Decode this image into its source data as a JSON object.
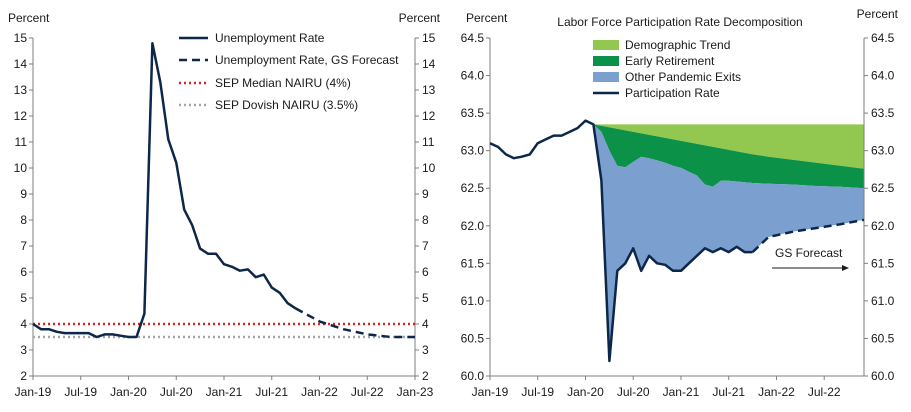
{
  "colors": {
    "navy": "#0c2749",
    "red_dotted": "#d9251d",
    "gray_dotted": "#a6a6a6",
    "demographic": "#92c84f",
    "early_retirement": "#0b9148",
    "other_exits": "#7b9fcf",
    "axis": "#7f7f7f"
  },
  "chart_data": [
    {
      "type": "line",
      "title": "",
      "ylabel_left": "Percent",
      "ylabel_right": "Percent",
      "ylim": [
        2,
        15
      ],
      "yticks": [
        2,
        3,
        4,
        5,
        6,
        7,
        8,
        9,
        10,
        11,
        12,
        13,
        14,
        15
      ],
      "xlim": [
        "2019-01",
        "2023-01"
      ],
      "xtick_labels": [
        "Jan-19",
        "Jul-19",
        "Jan-20",
        "Jul-20",
        "Jan-21",
        "Jul-21",
        "Jan-22",
        "Jul-22",
        "Jan-23"
      ],
      "legend_position": "top-right",
      "series": [
        {
          "name": "Unemployment Rate",
          "style": "solid",
          "x": [
            "2019-01",
            "2019-02",
            "2019-03",
            "2019-04",
            "2019-05",
            "2019-06",
            "2019-07",
            "2019-08",
            "2019-09",
            "2019-10",
            "2019-11",
            "2019-12",
            "2020-01",
            "2020-02",
            "2020-03",
            "2020-04",
            "2020-05",
            "2020-06",
            "2020-07",
            "2020-08",
            "2020-09",
            "2020-10",
            "2020-11",
            "2020-12",
            "2021-01",
            "2021-02",
            "2021-03",
            "2021-04",
            "2021-05",
            "2021-06",
            "2021-07",
            "2021-08",
            "2021-09",
            "2021-10"
          ],
          "y": [
            4.0,
            3.8,
            3.8,
            3.7,
            3.65,
            3.65,
            3.65,
            3.65,
            3.5,
            3.6,
            3.6,
            3.55,
            3.5,
            3.5,
            4.4,
            14.8,
            13.3,
            11.1,
            10.2,
            8.4,
            7.8,
            6.9,
            6.7,
            6.7,
            6.3,
            6.2,
            6.05,
            6.1,
            5.8,
            5.9,
            5.4,
            5.2,
            4.8,
            4.6
          ]
        },
        {
          "name": "Unemployment Rate, GS Forecast",
          "style": "dashed",
          "x": [
            "2021-10",
            "2022-01",
            "2022-04",
            "2022-07",
            "2022-10",
            "2023-01"
          ],
          "y": [
            4.6,
            4.1,
            3.8,
            3.6,
            3.5,
            3.5
          ]
        },
        {
          "name": "SEP Median NAIRU (4%)",
          "style": "dotted",
          "x": [
            "2019-01",
            "2023-01"
          ],
          "y": [
            4.0,
            4.0
          ]
        },
        {
          "name": "SEP Dovish NAIRU (3.5%)",
          "style": "dotted",
          "x": [
            "2019-01",
            "2023-01"
          ],
          "y": [
            3.5,
            3.5
          ]
        }
      ]
    },
    {
      "type": "area",
      "title": "Labor Force Participation Rate Decomposition",
      "ylabel_left": "Percent",
      "ylabel_right": "Percent",
      "ylim": [
        60.0,
        64.5
      ],
      "yticks": [
        60.0,
        60.5,
        61.0,
        61.5,
        62.0,
        62.5,
        63.0,
        63.5,
        64.0,
        64.5
      ],
      "xlim": [
        "2019-01",
        "2022-12"
      ],
      "xtick_labels": [
        "Jan-19",
        "Jul-19",
        "Jan-20",
        "Jul-20",
        "Jan-21",
        "Jul-21",
        "Jan-22",
        "Jul-22"
      ],
      "legend_position": "top-right",
      "annotation": "GS Forecast",
      "area_x": [
        "2020-02",
        "2020-03",
        "2020-04",
        "2020-05",
        "2020-06",
        "2020-07",
        "2020-08",
        "2020-09",
        "2020-10",
        "2020-11",
        "2020-12",
        "2021-01",
        "2021-02",
        "2021-03",
        "2021-04",
        "2021-05",
        "2021-06",
        "2021-07",
        "2021-08",
        "2021-09",
        "2021-10",
        "2021-12",
        "2022-03",
        "2022-06",
        "2022-09",
        "2022-12"
      ],
      "series": [
        {
          "name": "Demographic Trend",
          "upper": [
            63.35,
            63.35,
            63.35,
            63.35,
            63.35,
            63.35,
            63.35,
            63.35,
            63.35,
            63.35,
            63.35,
            63.35,
            63.35,
            63.35,
            63.35,
            63.35,
            63.35,
            63.35,
            63.35,
            63.35,
            63.35,
            63.35,
            63.35,
            63.35,
            63.35,
            63.35
          ],
          "lower": [
            63.35,
            63.33,
            63.31,
            63.29,
            63.27,
            63.25,
            63.23,
            63.21,
            63.19,
            63.17,
            63.15,
            63.13,
            63.11,
            63.09,
            63.07,
            63.05,
            63.03,
            63.01,
            62.99,
            62.97,
            62.95,
            62.92,
            62.88,
            62.84,
            62.8,
            62.76
          ]
        },
        {
          "name": "Early Retirement",
          "upper": [
            63.35,
            63.33,
            63.31,
            63.29,
            63.27,
            63.25,
            63.23,
            63.21,
            63.19,
            63.17,
            63.15,
            63.13,
            63.11,
            63.09,
            63.07,
            63.05,
            63.03,
            63.01,
            62.99,
            62.97,
            62.95,
            62.92,
            62.88,
            62.84,
            62.8,
            62.76
          ],
          "lower": [
            63.35,
            63.25,
            63.0,
            62.8,
            62.78,
            62.85,
            62.92,
            62.9,
            62.87,
            62.84,
            62.8,
            62.77,
            62.72,
            62.67,
            62.55,
            62.52,
            62.6,
            62.6,
            62.59,
            62.58,
            62.57,
            62.56,
            62.55,
            62.53,
            62.52,
            62.5
          ]
        },
        {
          "name": "Other Pandemic Exits",
          "upper": [
            63.35,
            63.25,
            63.0,
            62.8,
            62.78,
            62.85,
            62.92,
            62.9,
            62.87,
            62.84,
            62.8,
            62.77,
            62.72,
            62.67,
            62.55,
            62.52,
            62.6,
            62.6,
            62.59,
            62.58,
            62.57,
            62.56,
            62.55,
            62.53,
            62.52,
            62.5
          ],
          "lower": [
            63.35,
            62.6,
            60.2,
            61.4,
            61.5,
            61.7,
            61.4,
            61.6,
            61.5,
            61.48,
            61.4,
            61.4,
            61.5,
            61.6,
            61.7,
            61.65,
            61.7,
            61.65,
            61.72,
            61.65,
            61.65,
            61.85,
            61.92,
            61.97,
            62.02,
            62.08
          ]
        },
        {
          "name": "Participation Rate",
          "style": "solid",
          "x": [
            "2019-01",
            "2019-02",
            "2019-03",
            "2019-04",
            "2019-05",
            "2019-06",
            "2019-07",
            "2019-08",
            "2019-09",
            "2019-10",
            "2019-11",
            "2019-12",
            "2020-01",
            "2020-02",
            "2020-03",
            "2020-04",
            "2020-05",
            "2020-06",
            "2020-07",
            "2020-08",
            "2020-09",
            "2020-10",
            "2020-11",
            "2020-12",
            "2021-01",
            "2021-02",
            "2021-03",
            "2021-04",
            "2021-05",
            "2021-06",
            "2021-07",
            "2021-08",
            "2021-09",
            "2021-10"
          ],
          "y": [
            63.1,
            63.05,
            62.95,
            62.9,
            62.92,
            62.95,
            63.1,
            63.15,
            63.2,
            63.2,
            63.25,
            63.3,
            63.4,
            63.35,
            62.6,
            60.2,
            61.4,
            61.5,
            61.7,
            61.4,
            61.6,
            61.5,
            61.48,
            61.4,
            61.4,
            61.5,
            61.6,
            61.7,
            61.65,
            61.7,
            61.65,
            61.72,
            61.65,
            61.65
          ]
        },
        {
          "name": "Participation Rate, GS Forecast",
          "style": "dashed",
          "x": [
            "2021-10",
            "2021-12",
            "2022-03",
            "2022-06",
            "2022-09",
            "2022-12"
          ],
          "y": [
            61.65,
            61.85,
            61.92,
            61.97,
            62.02,
            62.08
          ]
        }
      ]
    }
  ]
}
